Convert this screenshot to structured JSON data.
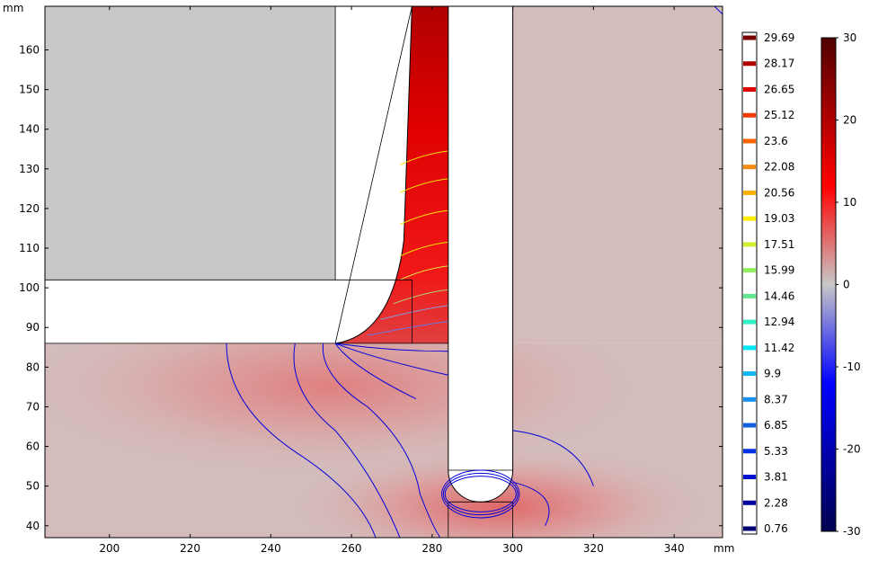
{
  "chart_data": {
    "type": "heatmap",
    "title": "",
    "x_axis": {
      "unit": "mm",
      "range": [
        184,
        352
      ],
      "ticks": [
        200,
        220,
        240,
        260,
        280,
        300,
        320,
        340
      ]
    },
    "y_axis": {
      "unit": "mm",
      "range": [
        37,
        171
      ],
      "ticks": [
        40,
        50,
        60,
        70,
        80,
        90,
        100,
        110,
        120,
        130,
        140,
        150,
        160
      ]
    },
    "grid": false,
    "contour_legend": {
      "placement": "right",
      "levels": [
        {
          "label": "29.69",
          "value": 29.69,
          "color": "#7a0000"
        },
        {
          "label": "28.17",
          "value": 28.17,
          "color": "#b00000"
        },
        {
          "label": "26.65",
          "value": 26.65,
          "color": "#e00000"
        },
        {
          "label": "25.12",
          "value": 25.12,
          "color": "#f03a00"
        },
        {
          "label": "23.6",
          "value": 23.6,
          "color": "#f86400"
        },
        {
          "label": "22.08",
          "value": 22.08,
          "color": "#f58a10"
        },
        {
          "label": "20.56",
          "value": 20.56,
          "color": "#f9b000"
        },
        {
          "label": "19.03",
          "value": 19.03,
          "color": "#ffee00"
        },
        {
          "label": "17.51",
          "value": 17.51,
          "color": "#d2f030"
        },
        {
          "label": "15.99",
          "value": 15.99,
          "color": "#90f060"
        },
        {
          "label": "14.46",
          "value": 14.46,
          "color": "#60e890"
        },
        {
          "label": "12.94",
          "value": 12.94,
          "color": "#30f0c8"
        },
        {
          "label": "11.42",
          "value": 11.42,
          "color": "#00e8f8"
        },
        {
          "label": "9.9",
          "value": 9.9,
          "color": "#10b8f0"
        },
        {
          "label": "8.37",
          "value": 8.37,
          "color": "#1890f0"
        },
        {
          "label": "6.85",
          "value": 6.85,
          "color": "#1060e0"
        },
        {
          "label": "5.33",
          "value": 5.33,
          "color": "#0030e8"
        },
        {
          "label": "3.81",
          "value": 3.81,
          "color": "#0010d0"
        },
        {
          "label": "2.28",
          "value": 2.28,
          "color": "#0000a0"
        },
        {
          "label": "0.76",
          "value": 0.76,
          "color": "#000070"
        }
      ]
    },
    "color_scale": {
      "placement": "far-right",
      "range": [
        -30,
        30
      ],
      "ticks": [
        30,
        20,
        10,
        0,
        -10,
        -20,
        -30
      ],
      "colors": [
        "#000050",
        "#0000ff",
        "#c8c8c8",
        "#ff0000",
        "#500000"
      ]
    },
    "regions": {
      "upper_block": {
        "x": [
          184,
          256
        ],
        "y": [
          102,
          171
        ],
        "fill": "#c8c8c8"
      },
      "slab": {
        "x": [
          184,
          275
        ],
        "y": [
          86,
          102
        ],
        "fill": "#ffffff"
      },
      "heated_channel": {
        "x": [
          275,
          284
        ],
        "y": [
          86,
          171
        ]
      },
      "rod": {
        "x": [
          284,
          300
        ],
        "y": [
          46,
          171
        ],
        "tip_round_y": 54
      },
      "ground": {
        "y_top": 86
      },
      "right_region": {
        "x": [
          300,
          352
        ],
        "y": [
          86,
          171
        ]
      }
    }
  }
}
